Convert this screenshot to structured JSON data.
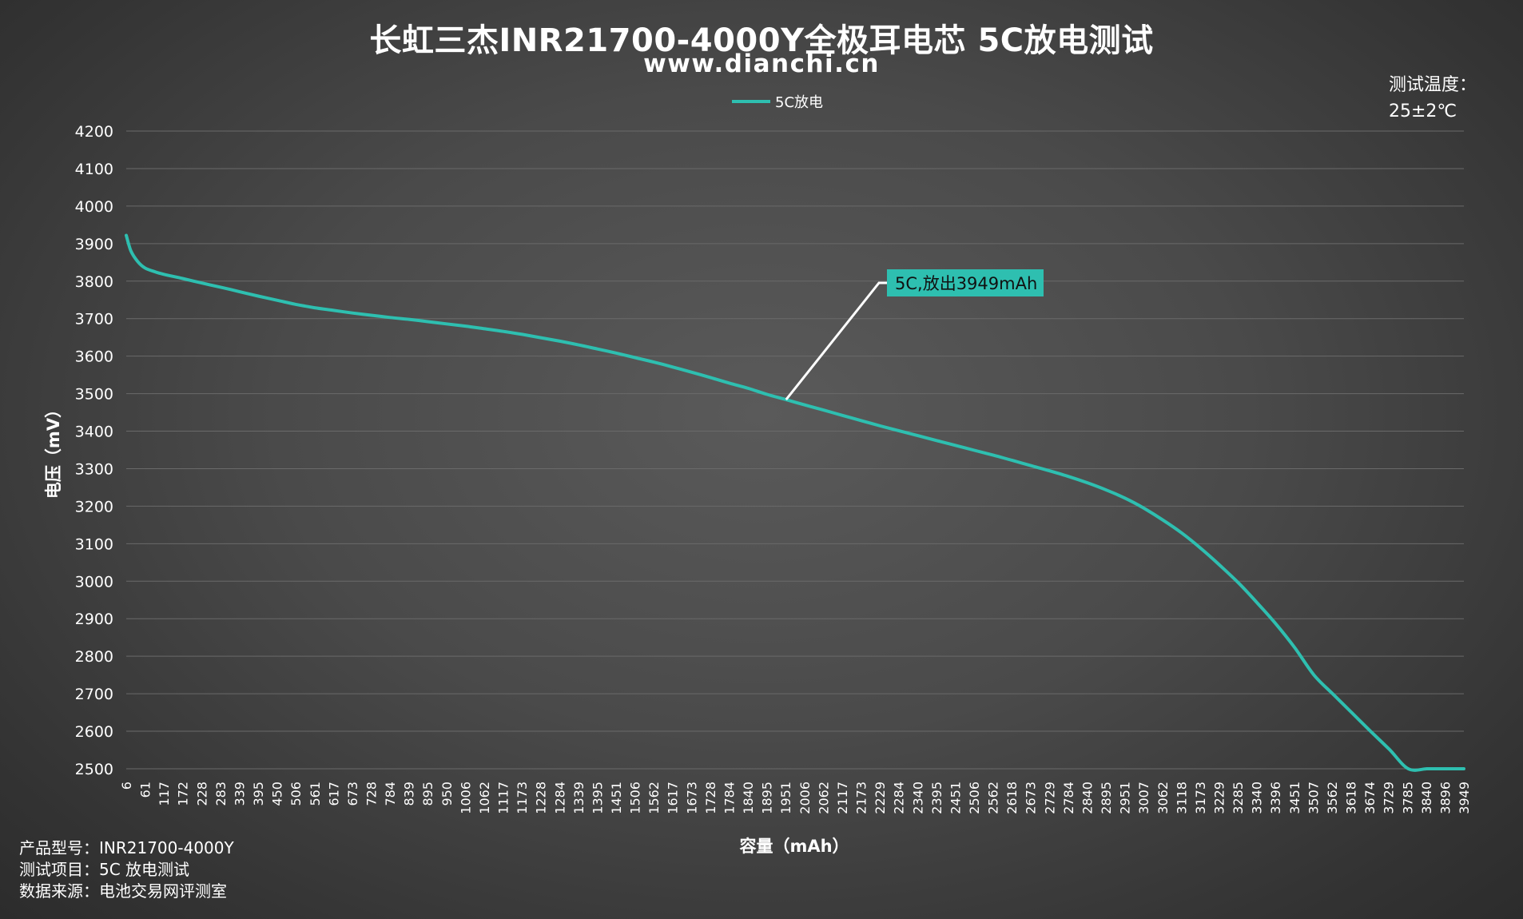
{
  "title": "长虹三杰INR21700-4000Y全极耳电芯 5C放电测试",
  "subtitle": "www.dianchi.cn",
  "temperature": {
    "label": "测试温度：",
    "value": "25±2℃"
  },
  "footer": {
    "model_label": "产品型号：",
    "model_value": "INR21700-4000Y",
    "item_label": "测试项目：",
    "item_value": "5C 放电测试",
    "source_label": "数据来源：",
    "source_value": "电池交易网评测室"
  },
  "colors": {
    "series": "#2ebfb0",
    "grid": "#6a6a6a",
    "annotation_bg": "#2ebfb0",
    "leader_line": "#ffffff"
  },
  "chart_data": {
    "type": "line",
    "xlabel": "容量（mAh）",
    "ylabel": "电压（mV）",
    "ylim": [
      2500,
      4200
    ],
    "y_ticks": [
      4200,
      4100,
      4000,
      3900,
      3800,
      3700,
      3600,
      3500,
      3400,
      3300,
      3200,
      3100,
      3000,
      2900,
      2800,
      2700,
      2600,
      2500
    ],
    "x_tick_labels": [
      "6",
      "61",
      "117",
      "172",
      "228",
      "283",
      "339",
      "395",
      "450",
      "506",
      "561",
      "617",
      "673",
      "728",
      "784",
      "839",
      "895",
      "950",
      "1006",
      "1062",
      "1117",
      "1173",
      "1228",
      "1284",
      "1339",
      "1395",
      "1451",
      "1506",
      "1562",
      "1617",
      "1673",
      "1728",
      "1784",
      "1840",
      "1895",
      "1951",
      "2006",
      "2062",
      "2117",
      "2173",
      "2229",
      "2284",
      "2340",
      "2395",
      "2451",
      "2506",
      "2562",
      "2618",
      "2673",
      "2729",
      "2784",
      "2840",
      "2895",
      "2951",
      "3007",
      "3062",
      "3118",
      "3173",
      "3229",
      "3285",
      "3340",
      "3396",
      "3451",
      "3507",
      "3562",
      "3618",
      "3674",
      "3729",
      "3785",
      "3840",
      "3896",
      "3949"
    ],
    "xlim": [
      6,
      3949
    ],
    "grid": true,
    "legend_position": "top-center",
    "series": [
      {
        "name": "5C放电",
        "x": [
          6,
          20,
          40,
          61,
          90,
          117,
          172,
          228,
          283,
          339,
          395,
          450,
          506,
          561,
          617,
          673,
          728,
          784,
          839,
          895,
          950,
          1006,
          1062,
          1117,
          1173,
          1228,
          1284,
          1339,
          1395,
          1451,
          1506,
          1562,
          1617,
          1673,
          1728,
          1784,
          1840,
          1895,
          1951,
          2006,
          2062,
          2117,
          2173,
          2229,
          2284,
          2340,
          2395,
          2451,
          2506,
          2562,
          2618,
          2673,
          2729,
          2784,
          2840,
          2895,
          2951,
          3007,
          3062,
          3118,
          3173,
          3229,
          3285,
          3340,
          3396,
          3451,
          3507,
          3562,
          3618,
          3674,
          3729,
          3785,
          3840,
          3870,
          3896,
          3920,
          3949
        ],
        "y": [
          3922,
          3880,
          3852,
          3835,
          3825,
          3818,
          3807,
          3795,
          3784,
          3772,
          3760,
          3749,
          3738,
          3729,
          3722,
          3715,
          3709,
          3703,
          3698,
          3692,
          3686,
          3680,
          3673,
          3666,
          3658,
          3649,
          3640,
          3630,
          3619,
          3608,
          3596,
          3584,
          3571,
          3557,
          3543,
          3528,
          3514,
          3498,
          3484,
          3470,
          3456,
          3442,
          3428,
          3414,
          3401,
          3388,
          3375,
          3362,
          3349,
          3336,
          3322,
          3308,
          3294,
          3279,
          3262,
          3243,
          3221,
          3194,
          3163,
          3128,
          3088,
          3043,
          2995,
          2942,
          2885,
          2822,
          2750,
          2700,
          2650,
          2600,
          2552,
          2500,
          2500,
          2500,
          2500,
          2500,
          2500
        ]
      }
    ],
    "annotation": {
      "text": "5C,放出3949mAh",
      "at_x": 1951,
      "at_y": 3484
    }
  }
}
